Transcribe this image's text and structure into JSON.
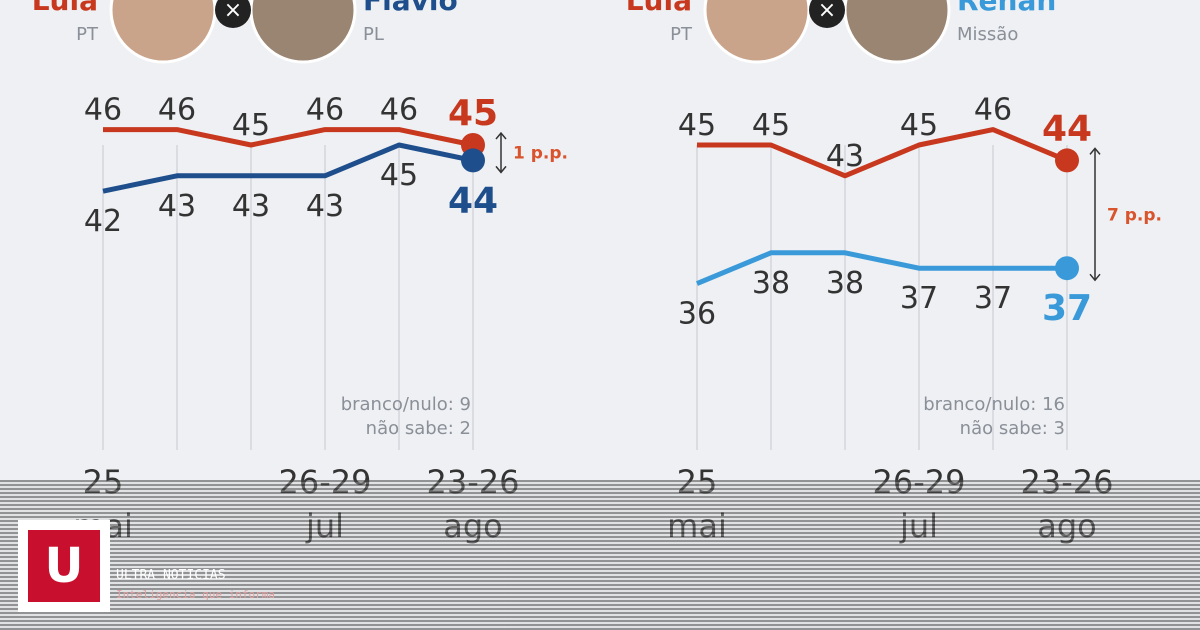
{
  "chart_data": [
    {
      "type": "line",
      "candidates": [
        {
          "name": "Lula",
          "party": "PT"
        },
        {
          "name": "Flávio",
          "party": "PL"
        }
      ],
      "categories": [
        "25 mai",
        null,
        null,
        "26-29 jul",
        null,
        "23-26 ago"
      ],
      "series": [
        {
          "name": "Lula",
          "color": "#c8381e",
          "values": [
            46,
            46,
            45,
            46,
            46,
            45
          ]
        },
        {
          "name": "Flávio",
          "color": "#1f4e8c",
          "values": [
            42,
            43,
            43,
            43,
            45,
            44
          ]
        }
      ],
      "ylim": [
        30,
        50
      ],
      "gap_label": "1 p.p.",
      "notes": [
        "branco/nulo: 9",
        "não sabe: 2"
      ]
    },
    {
      "type": "line",
      "candidates": [
        {
          "name": "Lula",
          "party": "PT"
        },
        {
          "name": "Renan",
          "party": "Missão"
        }
      ],
      "categories": [
        "25 mai",
        null,
        null,
        "26-29 jul",
        null,
        "23-26 ago"
      ],
      "series": [
        {
          "name": "Lula",
          "color": "#c8381e",
          "values": [
            45,
            45,
            43,
            45,
            46,
            44
          ]
        },
        {
          "name": "Renan",
          "color": "#3a9ad9",
          "values": [
            36,
            38,
            38,
            37,
            37,
            37
          ]
        }
      ],
      "ylim": [
        30,
        50
      ],
      "gap_label": "7 p.p.",
      "notes": [
        "branco/nulo: 16",
        "não sabe: 3"
      ]
    }
  ],
  "brand": {
    "logo": "U",
    "name": "ULTRA NOTICIAS",
    "tagline": "Inteligencia que informa"
  }
}
